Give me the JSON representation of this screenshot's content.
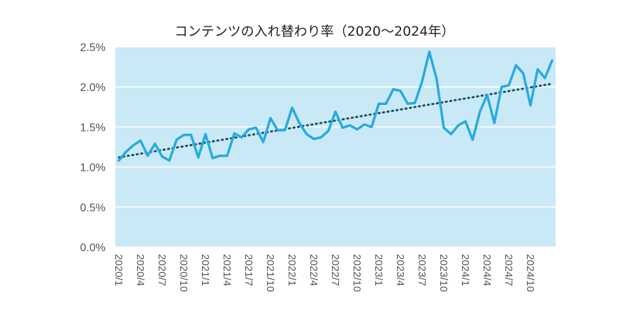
{
  "chart_data": {
    "type": "line",
    "title": "コンテンツの入れ替わり率（2020～2024年）",
    "xlabel": "",
    "ylabel": "",
    "ylim": [
      0,
      2.5
    ],
    "yticks": [
      "0.0%",
      "0.5%",
      "1.0%",
      "1.5%",
      "2.0%",
      "2.5%"
    ],
    "ytick_values": [
      0,
      0.5,
      1.0,
      1.5,
      2.0,
      2.5
    ],
    "xticks": [
      "2020/1",
      "2020/4",
      "2020/7",
      "2020/10",
      "2021/1",
      "2021/4",
      "2021/7",
      "2021/10",
      "2022/1",
      "2022/4",
      "2022/7",
      "2022/10",
      "2023/1",
      "2023/4",
      "2023/7",
      "2023/10",
      "2024/1",
      "2024/4",
      "2024/7",
      "2024/10"
    ],
    "grid": true,
    "legend": "none",
    "series": [
      {
        "color": "#27AAE1",
        "values": [
          1.08,
          1.19,
          1.27,
          1.33,
          1.14,
          1.29,
          1.13,
          1.08,
          1.34,
          1.4,
          1.4,
          1.12,
          1.41,
          1.11,
          1.14,
          1.14,
          1.42,
          1.37,
          1.47,
          1.49,
          1.31,
          1.61,
          1.46,
          1.46,
          1.74,
          1.55,
          1.41,
          1.35,
          1.37,
          1.45,
          1.69,
          1.49,
          1.52,
          1.47,
          1.53,
          1.5,
          1.79,
          1.79,
          1.97,
          1.95,
          1.79,
          1.8,
          2.07,
          2.44,
          2.1,
          1.49,
          1.41,
          1.52,
          1.57,
          1.34,
          1.69,
          1.9,
          1.55,
          2.0,
          2.02,
          2.27,
          2.17,
          1.77,
          2.22,
          2.11,
          2.33
        ]
      }
    ],
    "trendline": {
      "style": "dotted",
      "color": "#1F4E5F",
      "start": 1.12,
      "end": 2.04
    },
    "colors": {
      "plot_background": "#C9E9F6",
      "gridline": "#FFFFFF",
      "line": "#27AAE1",
      "trend": "#1F4E5F"
    }
  }
}
